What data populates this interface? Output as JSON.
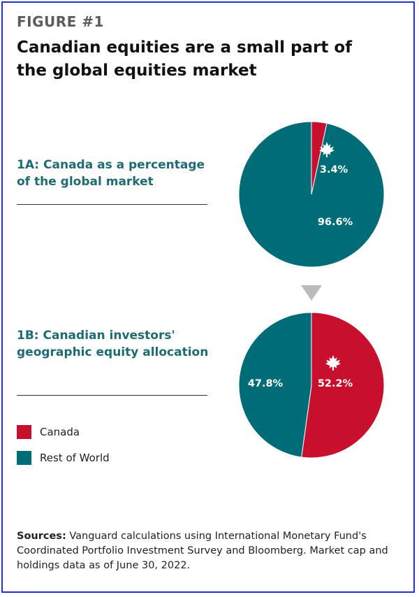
{
  "figure_label": "FIGURE #1",
  "title": "Canadian equities are a small part of the global equities market",
  "colors": {
    "canada": "#c8102e",
    "rest_of_world": "#006c78",
    "arrow": "#bbbbbb"
  },
  "icons": {
    "canada": "maple-leaf-icon",
    "divider": "down-triangle-icon"
  },
  "chart_data": [
    {
      "type": "pie",
      "title": "1A: Canada as a percentage of the global market",
      "slices": [
        {
          "name": "Canada",
          "value": 3.4,
          "label": "3.4%",
          "color": "#c8102e"
        },
        {
          "name": "Rest of World",
          "value": 96.6,
          "label": "96.6%",
          "color": "#006c78"
        }
      ]
    },
    {
      "type": "pie",
      "title": "1B: Canadian investors' geographic equity allocation",
      "slices": [
        {
          "name": "Canada",
          "value": 52.2,
          "label": "52.2%",
          "color": "#c8102e"
        },
        {
          "name": "Rest of World",
          "value": 47.8,
          "label": "47.8%",
          "color": "#006c78"
        }
      ]
    }
  ],
  "legend": [
    {
      "label": "Canada",
      "color": "#c8102e"
    },
    {
      "label": "Rest of World",
      "color": "#006c78"
    }
  ],
  "sources": {
    "label": "Sources:",
    "text": " Vanguard calculations using International Monetary Fund's Coordinated Portfolio Investment Survey and Bloomberg. Market cap and holdings data as of June 30, 2022."
  }
}
